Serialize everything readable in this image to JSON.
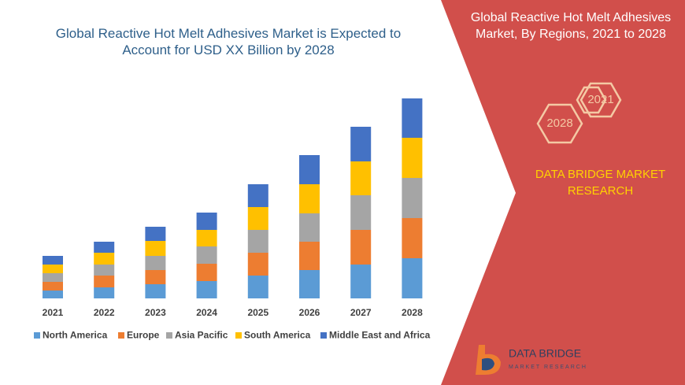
{
  "chart_data": {
    "type": "bar",
    "stacked": true,
    "title": "Global Reactive Hot Melt Adhesives Market is Expected to Account for USD XX Billion by 2028",
    "categories": [
      "2021",
      "2022",
      "2023",
      "2024",
      "2025",
      "2026",
      "2027",
      "2028"
    ],
    "series": [
      {
        "name": "North America",
        "color": "#5b9bd5",
        "values": [
          10,
          14,
          18,
          22,
          29,
          36,
          43,
          51
        ]
      },
      {
        "name": "Europe",
        "color": "#ed7d31",
        "values": [
          11,
          15,
          18,
          22,
          29,
          36,
          44,
          51
        ]
      },
      {
        "name": "Asia Pacific",
        "color": "#a5a5a5",
        "values": [
          11,
          14,
          18,
          22,
          29,
          36,
          44,
          51
        ]
      },
      {
        "name": "South America",
        "color": "#ffc000",
        "values": [
          11,
          15,
          19,
          21,
          29,
          37,
          43,
          51
        ]
      },
      {
        "name": "Middle East and Africa",
        "color": "#4472c4",
        "values": [
          11,
          14,
          18,
          22,
          29,
          37,
          44,
          50
        ]
      }
    ]
  },
  "panel": {
    "title": "Global Reactive Hot Melt Adhesives Market, By Regions, 2021 to 2028",
    "hexagons": [
      "2021",
      "2028"
    ],
    "brand": "DATA BRIDGE MARKET RESEARCH",
    "logo": {
      "name": "DATA BRIDGE",
      "tagline": "MARKET RESEARCH"
    }
  }
}
